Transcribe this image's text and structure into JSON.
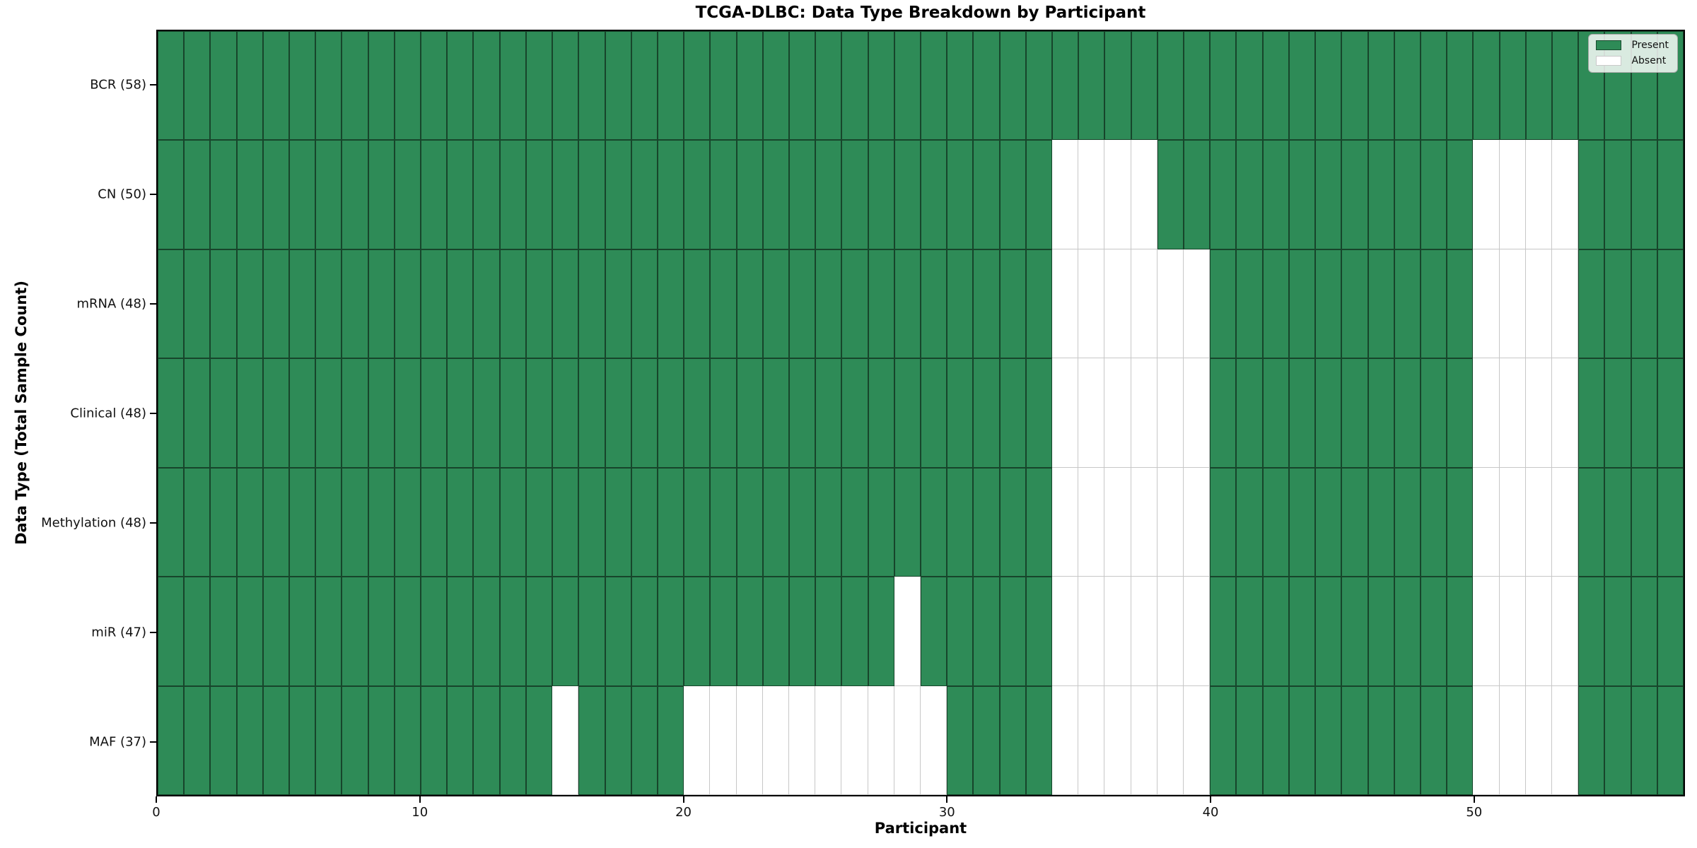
{
  "chart_data": {
    "type": "heatmap",
    "title": "TCGA-DLBC: Data Type Breakdown by Participant",
    "xlabel": "Participant",
    "ylabel": "Data Type (Total Sample Count)",
    "x_ticks": [
      0,
      10,
      20,
      30,
      40,
      50
    ],
    "x_range": [
      0,
      58
    ],
    "n_participants": 58,
    "grid": "cell borders on",
    "legend_position": "upper right",
    "legend": [
      {
        "label": "Present",
        "color": "#2e8b57"
      },
      {
        "label": "Absent",
        "color": "#ffffff"
      }
    ],
    "colors": {
      "present": "#2e8b57",
      "absent": "#ffffff"
    },
    "rows": [
      {
        "label": "BCR (58)",
        "total": 58,
        "absent_participants": []
      },
      {
        "label": "CN (50)",
        "total": 50,
        "absent_participants": [
          34,
          35,
          36,
          37,
          50,
          51,
          52,
          53
        ]
      },
      {
        "label": "mRNA (48)",
        "total": 48,
        "absent_participants": [
          34,
          35,
          36,
          37,
          38,
          39,
          50,
          51,
          52,
          53
        ]
      },
      {
        "label": "Clinical (48)",
        "total": 48,
        "absent_participants": [
          34,
          35,
          36,
          37,
          38,
          39,
          50,
          51,
          52,
          53
        ]
      },
      {
        "label": "Methylation (48)",
        "total": 48,
        "absent_participants": [
          34,
          35,
          36,
          37,
          38,
          39,
          50,
          51,
          52,
          53
        ]
      },
      {
        "label": "miR (47)",
        "total": 47,
        "absent_participants": [
          28,
          34,
          35,
          36,
          37,
          38,
          39,
          50,
          51,
          52,
          53
        ]
      },
      {
        "label": "MAF (37)",
        "total": 37,
        "absent_participants": [
          15,
          20,
          21,
          22,
          23,
          24,
          25,
          26,
          27,
          28,
          29,
          34,
          35,
          36,
          37,
          38,
          39,
          50,
          51,
          52,
          53
        ]
      }
    ]
  }
}
